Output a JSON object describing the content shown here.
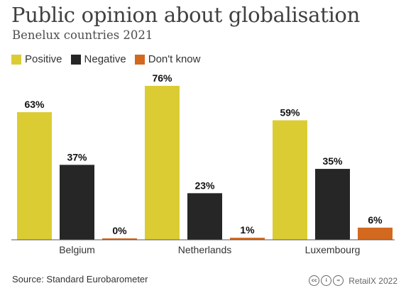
{
  "title": "Public opinion about globalisation",
  "subtitle": "Benelux countries 2021",
  "legend": [
    {
      "label": "Positive",
      "color": "#dccc34"
    },
    {
      "label": "Negative",
      "color": "#262626"
    },
    {
      "label": "Don't know",
      "color": "#d2691e"
    }
  ],
  "source": "Source: Standard Eurobarometer",
  "credit": "RetailX 2022",
  "license_icons": [
    "cc-icon",
    "by-icon",
    "nd-icon"
  ],
  "chart_data": {
    "type": "bar",
    "categories": [
      "Belgium",
      "Netherlands",
      "Luxembourg"
    ],
    "series": [
      {
        "name": "Positive",
        "values": [
          63,
          76,
          59
        ],
        "labels": [
          "63%",
          "76%",
          "59%"
        ],
        "color": "#dccc34"
      },
      {
        "name": "Negative",
        "values": [
          37,
          23,
          35
        ],
        "labels": [
          "37%",
          "23%",
          "35%"
        ],
        "color": "#262626"
      },
      {
        "name": "Don't know",
        "values": [
          0,
          1,
          6
        ],
        "labels": [
          "0%",
          "1%",
          "6%"
        ],
        "color": "#d2691e"
      }
    ],
    "ylim": [
      0,
      76
    ],
    "grid": false,
    "legend_position": "top-left"
  }
}
